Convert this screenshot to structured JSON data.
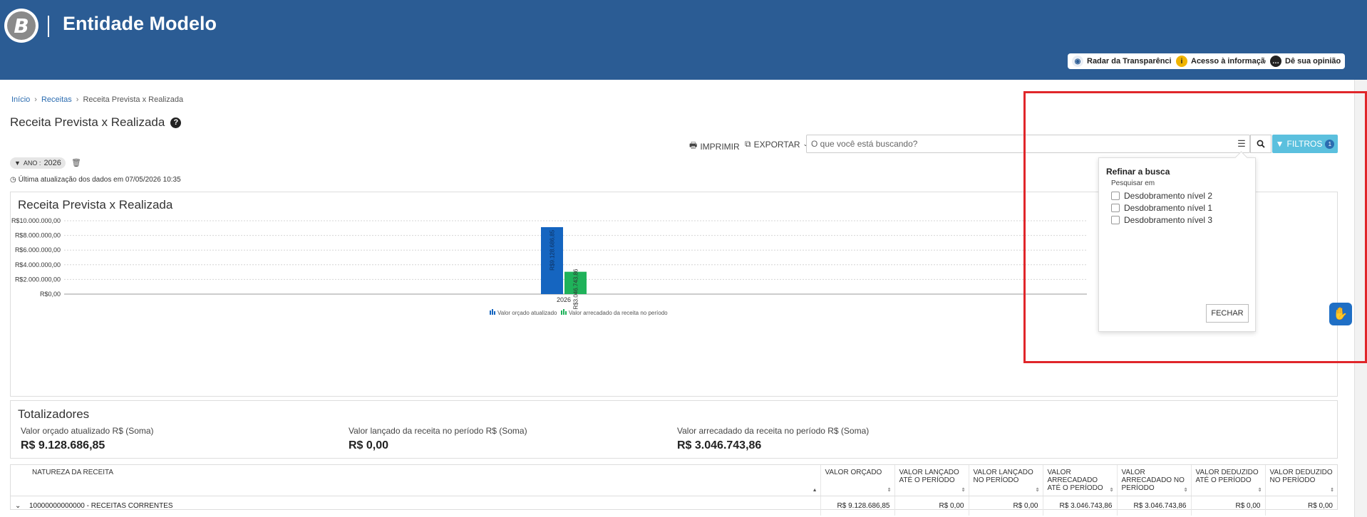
{
  "header": {
    "logo_letter": "B",
    "title": "Entidade Modelo",
    "buttons": [
      {
        "label": "Radar da Transparência",
        "icon": "radar-icon"
      },
      {
        "label": "Acesso à informação",
        "icon": "info-icon"
      },
      {
        "label": "Dê sua opinião",
        "icon": "chat-bubble-icon"
      }
    ]
  },
  "breadcrumb": [
    "Início",
    "Receitas",
    "Receita Prevista x Realizada"
  ],
  "page_title": "Receita Prevista x Realizada",
  "toolbar": {
    "print_label": "IMPRIMIR",
    "export_label": "EXPORTAR",
    "search_placeholder": "O que você está buscando?",
    "filters_label": "FILTROS",
    "filters_count": "1"
  },
  "filter_chip": {
    "key": "ANO :",
    "value": "2026"
  },
  "last_update": "Última atualização dos dados em 07/05/2026 10:35",
  "chart_data": {
    "type": "bar",
    "title": "Receita Prevista x Realizada",
    "categories": [
      "2026"
    ],
    "series": [
      {
        "name": "Valor orçado atualizado",
        "values": [
          9128686.85
        ],
        "label": "R$9.128.686,85",
        "color": "#1565c0"
      },
      {
        "name": "Valor arrecadado da receita no período",
        "values": [
          3046743.86
        ],
        "label": "R$3.046.743,86",
        "color": "#1fb25a"
      }
    ],
    "ylim": [
      0,
      10000000
    ],
    "yticks": [
      {
        "value": 0,
        "label": "R$0,00"
      },
      {
        "value": 2000000,
        "label": "R$2.000.000,00"
      },
      {
        "value": 4000000,
        "label": "R$4.000.000,00"
      },
      {
        "value": 6000000,
        "label": "R$6.000.000,00"
      },
      {
        "value": 8000000,
        "label": "R$8.000.000,00"
      },
      {
        "value": 10000000,
        "label": "R$10.000.000,00"
      }
    ],
    "grid": true,
    "legend": "bottom"
  },
  "totals": {
    "title": "Totalizadores",
    "items": [
      {
        "label": "Valor orçado atualizado R$ (Soma)",
        "value": "R$ 9.128.686,85"
      },
      {
        "label": "Valor lançado da receita no período R$ (Soma)",
        "value": "R$ 0,00"
      },
      {
        "label": "Valor arrecadado da receita no período R$ (Soma)",
        "value": "R$ 3.046.743,86"
      }
    ]
  },
  "table": {
    "columns": [
      "NATUREZA DA RECEITA",
      "VALOR ORÇADO",
      "VALOR LANÇADO ATÉ O PERÍODO",
      "VALOR LANÇADO NO PERÍODO",
      "VALOR ARRECADADO ATÉ O PERÍODO",
      "VALOR ARRECADADO NO PERÍODO",
      "VALOR DEDUZIDO ATÉ O PERÍODO",
      "VALOR DEDUZIDO NO PERÍODO"
    ],
    "rows": [
      [
        "10000000000000 - RECEITAS CORRENTES",
        "R$ 9.128.686,85",
        "R$ 0,00",
        "R$ 0,00",
        "R$ 3.046.743,86",
        "R$ 3.046.743,86",
        "R$ 0,00",
        "R$ 0,00"
      ]
    ]
  },
  "refine_popover": {
    "title": "Refinar a busca",
    "subtitle": "Pesquisar em",
    "options": [
      "Desdobramento nível 2",
      "Desdobramento nível 1",
      "Desdobramento nível 3"
    ],
    "close_label": "FECHAR"
  }
}
